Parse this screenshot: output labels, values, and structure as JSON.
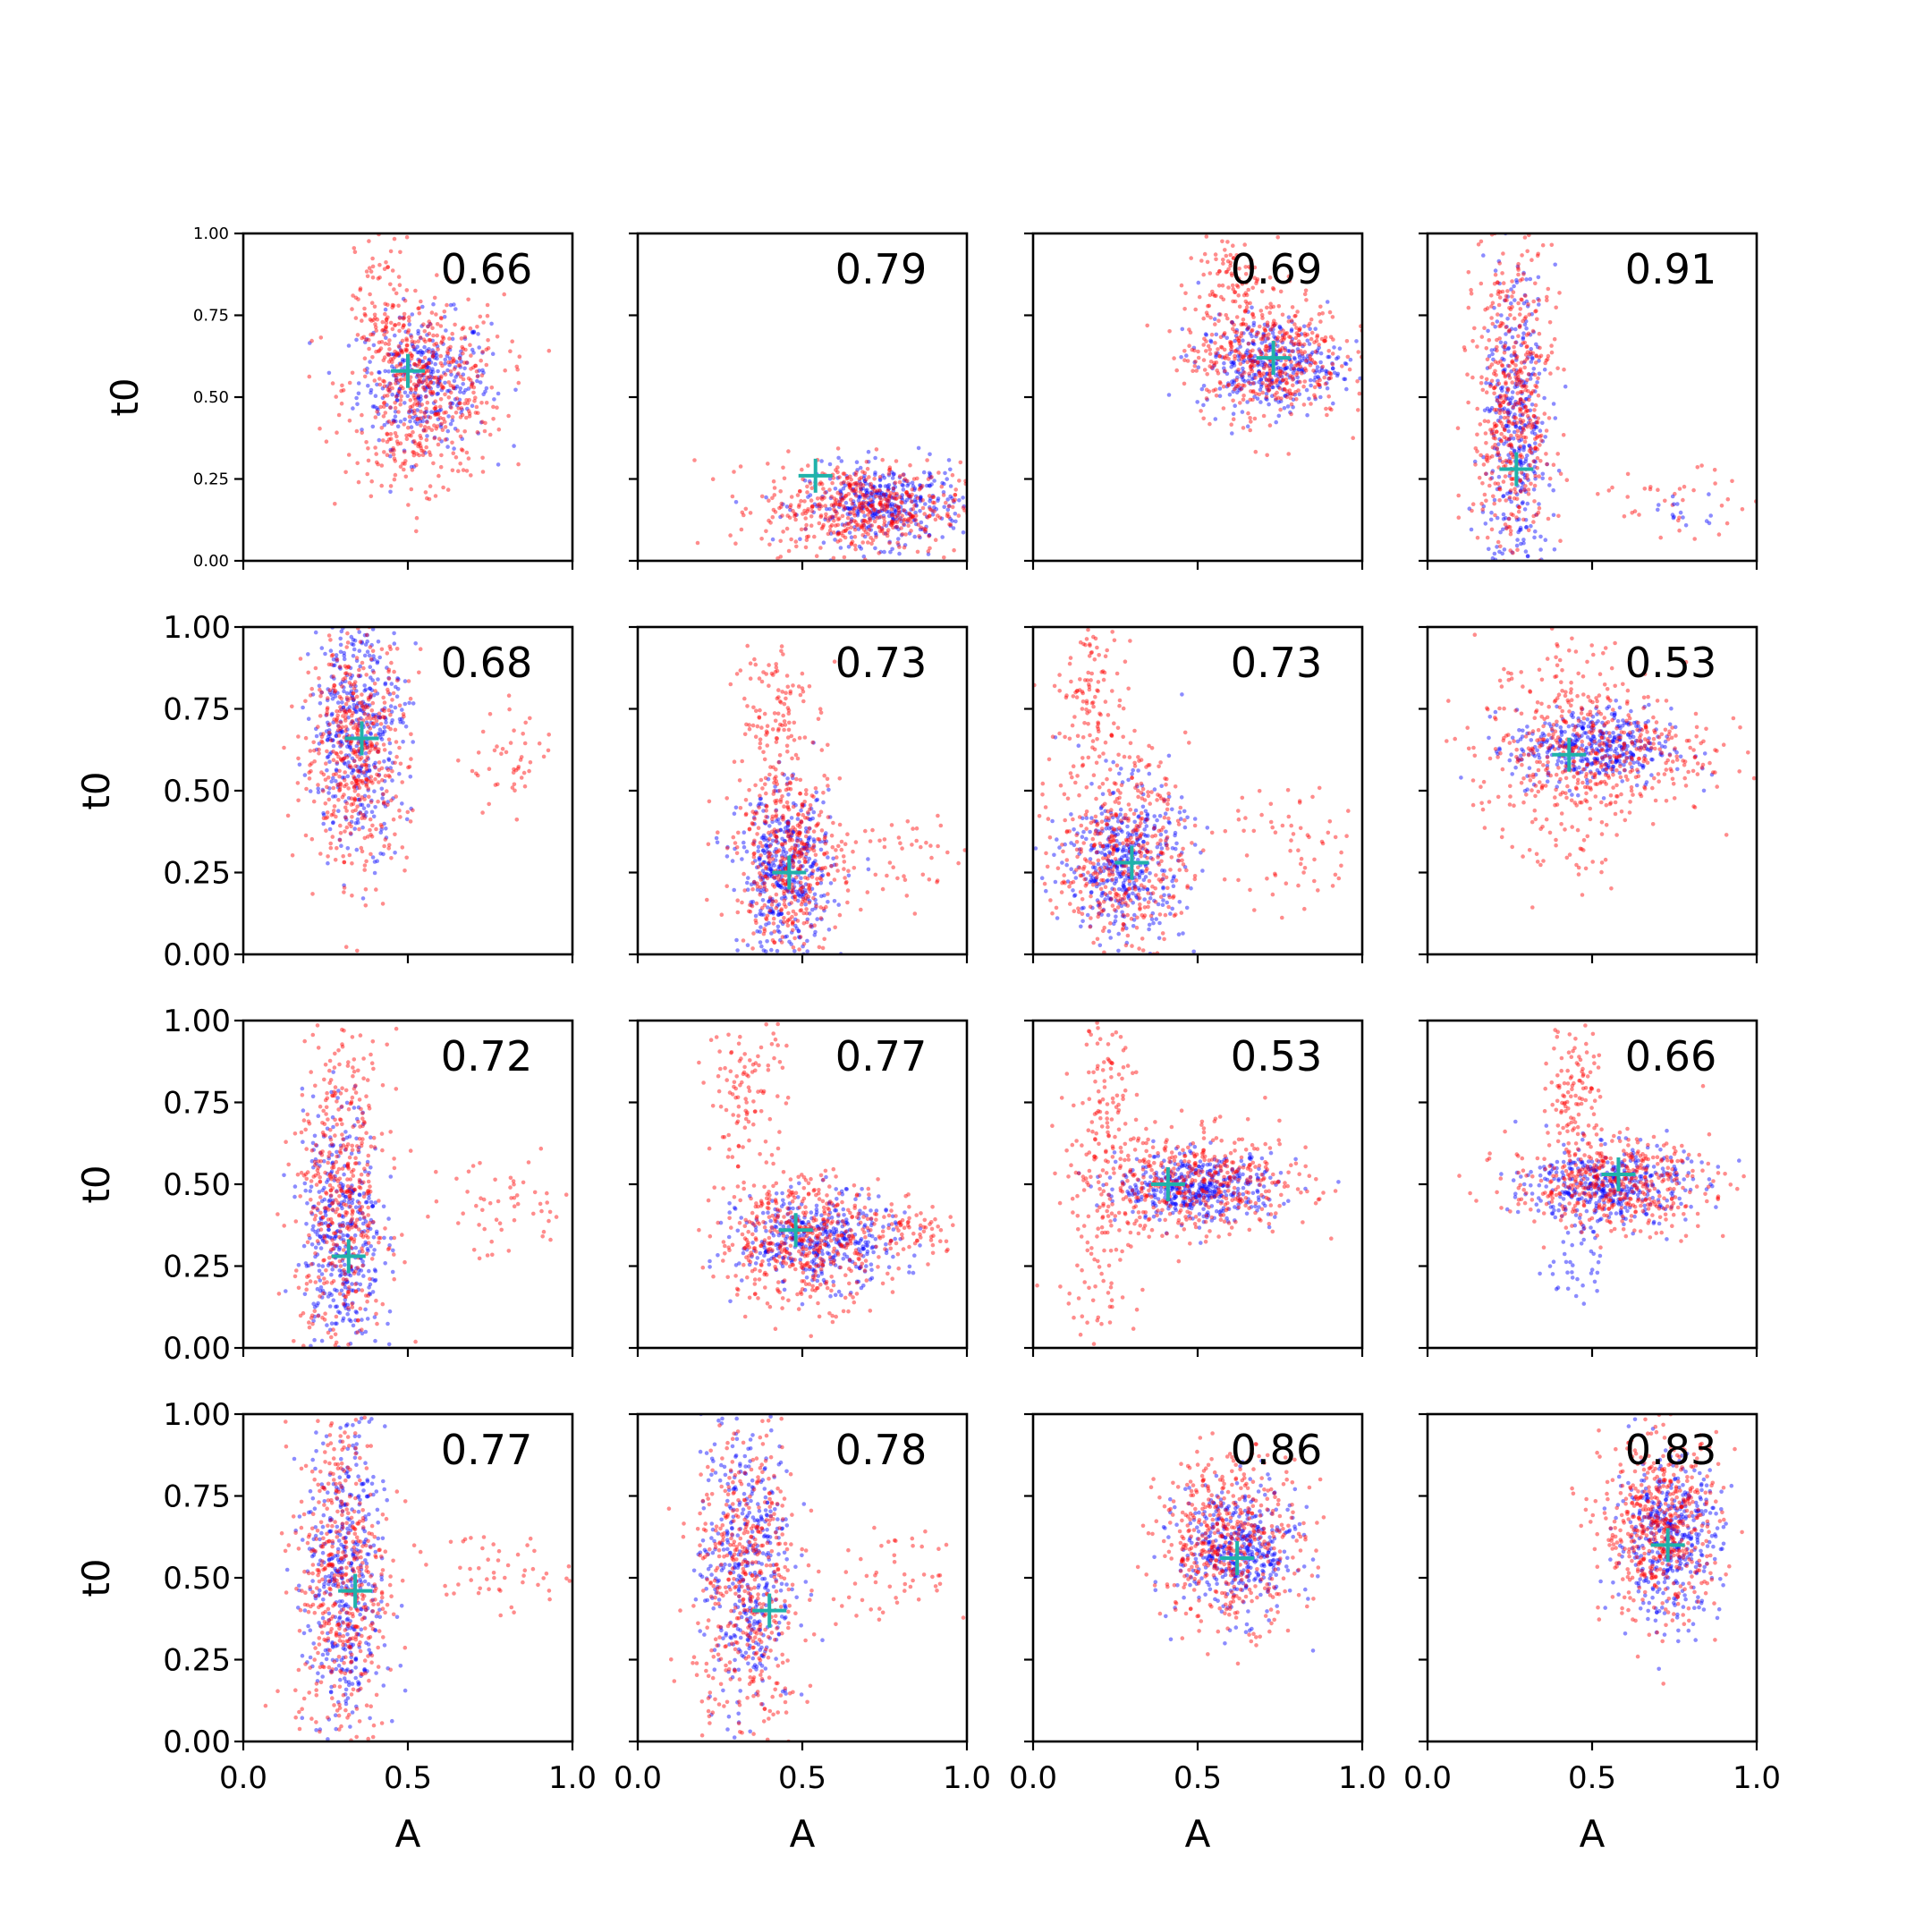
{
  "chart_data": {
    "type": "scatter",
    "layout": "4x4 grid of panels",
    "xlabel": "A",
    "ylabel": "t0",
    "xlim": [
      0,
      1
    ],
    "ylim": [
      0,
      1
    ],
    "x_ticks": [
      "0.0",
      "0.5",
      "1.0"
    ],
    "y_ticks": [
      "0.00",
      "0.25",
      "0.50",
      "0.75",
      "1.00"
    ],
    "series_colors": {
      "first": "#0000ff",
      "second": "#ff0000",
      "marker": "#20b2aa"
    },
    "panels": [
      {
        "score": "0.66",
        "marker": [
          0.5,
          0.58
        ],
        "clusters": [
          {
            "cx": 0.55,
            "cy": 0.55,
            "sx": 0.1,
            "sy": 0.1,
            "n": 320,
            "c": "blue"
          },
          {
            "cx": 0.55,
            "cy": 0.53,
            "sx": 0.12,
            "sy": 0.14,
            "n": 480,
            "c": "red"
          },
          {
            "cx": 0.42,
            "cy": 0.75,
            "sx": 0.04,
            "sy": 0.14,
            "n": 90,
            "c": "red"
          },
          {
            "cx": 0.5,
            "cy": 0.3,
            "sx": 0.05,
            "sy": 0.08,
            "n": 40,
            "c": "red"
          }
        ]
      },
      {
        "score": "0.79",
        "marker": [
          0.54,
          0.26
        ],
        "clusters": [
          {
            "cx": 0.75,
            "cy": 0.17,
            "sx": 0.12,
            "sy": 0.06,
            "n": 380,
            "c": "blue"
          },
          {
            "cx": 0.68,
            "cy": 0.16,
            "sx": 0.15,
            "sy": 0.07,
            "n": 500,
            "c": "red"
          }
        ]
      },
      {
        "score": "0.69",
        "marker": [
          0.73,
          0.62
        ],
        "clusters": [
          {
            "cx": 0.72,
            "cy": 0.6,
            "sx": 0.11,
            "sy": 0.07,
            "n": 350,
            "c": "blue"
          },
          {
            "cx": 0.7,
            "cy": 0.63,
            "sx": 0.12,
            "sy": 0.1,
            "n": 450,
            "c": "red"
          },
          {
            "cx": 0.6,
            "cy": 0.88,
            "sx": 0.05,
            "sy": 0.08,
            "n": 80,
            "c": "red"
          }
        ]
      },
      {
        "score": "0.91",
        "marker": [
          0.27,
          0.28
        ],
        "clusters": [
          {
            "cx": 0.27,
            "cy": 0.38,
            "sx": 0.05,
            "sy": 0.25,
            "n": 380,
            "c": "blue"
          },
          {
            "cx": 0.26,
            "cy": 0.45,
            "sx": 0.06,
            "sy": 0.27,
            "n": 520,
            "c": "red"
          },
          {
            "cx": 0.75,
            "cy": 0.18,
            "sx": 0.12,
            "sy": 0.05,
            "n": 35,
            "c": "red"
          },
          {
            "cx": 0.78,
            "cy": 0.15,
            "sx": 0.08,
            "sy": 0.03,
            "n": 15,
            "c": "blue"
          }
        ]
      },
      {
        "score": "0.68",
        "marker": [
          0.36,
          0.66
        ],
        "clusters": [
          {
            "cx": 0.35,
            "cy": 0.7,
            "sx": 0.07,
            "sy": 0.18,
            "n": 420,
            "c": "blue"
          },
          {
            "cx": 0.34,
            "cy": 0.62,
            "sx": 0.08,
            "sy": 0.18,
            "n": 480,
            "c": "red"
          },
          {
            "cx": 0.82,
            "cy": 0.58,
            "sx": 0.07,
            "sy": 0.08,
            "n": 45,
            "c": "red"
          }
        ]
      },
      {
        "score": "0.73",
        "marker": [
          0.46,
          0.25
        ],
        "clusters": [
          {
            "cx": 0.45,
            "cy": 0.25,
            "sx": 0.07,
            "sy": 0.12,
            "n": 420,
            "c": "blue"
          },
          {
            "cx": 0.46,
            "cy": 0.3,
            "sx": 0.08,
            "sy": 0.14,
            "n": 430,
            "c": "red"
          },
          {
            "cx": 0.4,
            "cy": 0.75,
            "sx": 0.06,
            "sy": 0.12,
            "n": 110,
            "c": "red"
          },
          {
            "cx": 0.78,
            "cy": 0.3,
            "sx": 0.1,
            "sy": 0.07,
            "n": 50,
            "c": "red"
          }
        ]
      },
      {
        "score": "0.73",
        "marker": [
          0.3,
          0.28
        ],
        "clusters": [
          {
            "cx": 0.28,
            "cy": 0.28,
            "sx": 0.09,
            "sy": 0.12,
            "n": 430,
            "c": "blue"
          },
          {
            "cx": 0.27,
            "cy": 0.32,
            "sx": 0.1,
            "sy": 0.15,
            "n": 430,
            "c": "red"
          },
          {
            "cx": 0.18,
            "cy": 0.8,
            "sx": 0.06,
            "sy": 0.12,
            "n": 110,
            "c": "red"
          },
          {
            "cx": 0.8,
            "cy": 0.32,
            "sx": 0.1,
            "sy": 0.1,
            "n": 60,
            "c": "red"
          }
        ]
      },
      {
        "score": "0.53",
        "marker": [
          0.43,
          0.61
        ],
        "clusters": [
          {
            "cx": 0.5,
            "cy": 0.63,
            "sx": 0.12,
            "sy": 0.06,
            "n": 400,
            "c": "blue"
          },
          {
            "cx": 0.5,
            "cy": 0.62,
            "sx": 0.18,
            "sy": 0.1,
            "n": 450,
            "c": "red"
          },
          {
            "cx": 0.4,
            "cy": 0.4,
            "sx": 0.1,
            "sy": 0.12,
            "n": 60,
            "c": "red"
          },
          {
            "cx": 0.42,
            "cy": 0.85,
            "sx": 0.1,
            "sy": 0.08,
            "n": 50,
            "c": "red"
          }
        ]
      },
      {
        "score": "0.72",
        "marker": [
          0.32,
          0.28
        ],
        "clusters": [
          {
            "cx": 0.3,
            "cy": 0.35,
            "sx": 0.06,
            "sy": 0.2,
            "n": 400,
            "c": "blue"
          },
          {
            "cx": 0.3,
            "cy": 0.45,
            "sx": 0.07,
            "sy": 0.25,
            "n": 480,
            "c": "red"
          },
          {
            "cx": 0.78,
            "cy": 0.42,
            "sx": 0.12,
            "sy": 0.08,
            "n": 55,
            "c": "red"
          }
        ]
      },
      {
        "score": "0.77",
        "marker": [
          0.48,
          0.36
        ],
        "clusters": [
          {
            "cx": 0.55,
            "cy": 0.33,
            "sx": 0.12,
            "sy": 0.07,
            "n": 400,
            "c": "blue"
          },
          {
            "cx": 0.5,
            "cy": 0.33,
            "sx": 0.13,
            "sy": 0.1,
            "n": 480,
            "c": "red"
          },
          {
            "cx": 0.33,
            "cy": 0.78,
            "sx": 0.06,
            "sy": 0.12,
            "n": 110,
            "c": "red"
          },
          {
            "cx": 0.85,
            "cy": 0.36,
            "sx": 0.08,
            "sy": 0.04,
            "n": 60,
            "c": "red"
          }
        ]
      },
      {
        "score": "0.53",
        "marker": [
          0.41,
          0.5
        ],
        "clusters": [
          {
            "cx": 0.5,
            "cy": 0.49,
            "sx": 0.12,
            "sy": 0.05,
            "n": 420,
            "c": "blue"
          },
          {
            "cx": 0.5,
            "cy": 0.5,
            "sx": 0.17,
            "sy": 0.08,
            "n": 450,
            "c": "red"
          },
          {
            "cx": 0.2,
            "cy": 0.4,
            "sx": 0.06,
            "sy": 0.22,
            "n": 130,
            "c": "red"
          },
          {
            "cx": 0.22,
            "cy": 0.82,
            "sx": 0.05,
            "sy": 0.1,
            "n": 60,
            "c": "red"
          }
        ]
      },
      {
        "score": "0.66",
        "marker": [
          0.58,
          0.53
        ],
        "clusters": [
          {
            "cx": 0.55,
            "cy": 0.5,
            "sx": 0.12,
            "sy": 0.06,
            "n": 400,
            "c": "blue"
          },
          {
            "cx": 0.55,
            "cy": 0.5,
            "sx": 0.15,
            "sy": 0.07,
            "n": 450,
            "c": "red"
          },
          {
            "cx": 0.45,
            "cy": 0.8,
            "sx": 0.04,
            "sy": 0.11,
            "n": 110,
            "c": "red"
          },
          {
            "cx": 0.45,
            "cy": 0.28,
            "sx": 0.04,
            "sy": 0.08,
            "n": 40,
            "c": "blue"
          }
        ]
      },
      {
        "score": "0.77",
        "marker": [
          0.34,
          0.46
        ],
        "clusters": [
          {
            "cx": 0.31,
            "cy": 0.48,
            "sx": 0.06,
            "sy": 0.24,
            "n": 420,
            "c": "blue"
          },
          {
            "cx": 0.3,
            "cy": 0.5,
            "sx": 0.07,
            "sy": 0.26,
            "n": 480,
            "c": "red"
          },
          {
            "cx": 0.75,
            "cy": 0.52,
            "sx": 0.13,
            "sy": 0.06,
            "n": 55,
            "c": "red"
          }
        ]
      },
      {
        "score": "0.78",
        "marker": [
          0.4,
          0.4
        ],
        "clusters": [
          {
            "cx": 0.33,
            "cy": 0.55,
            "sx": 0.07,
            "sy": 0.24,
            "n": 420,
            "c": "blue"
          },
          {
            "cx": 0.33,
            "cy": 0.48,
            "sx": 0.08,
            "sy": 0.26,
            "n": 480,
            "c": "red"
          },
          {
            "cx": 0.78,
            "cy": 0.5,
            "sx": 0.12,
            "sy": 0.06,
            "n": 55,
            "c": "red"
          }
        ]
      },
      {
        "score": "0.86",
        "marker": [
          0.62,
          0.56
        ],
        "clusters": [
          {
            "cx": 0.62,
            "cy": 0.58,
            "sx": 0.09,
            "sy": 0.1,
            "n": 420,
            "c": "blue"
          },
          {
            "cx": 0.6,
            "cy": 0.62,
            "sx": 0.11,
            "sy": 0.13,
            "n": 480,
            "c": "red"
          }
        ]
      },
      {
        "score": "0.83",
        "marker": [
          0.73,
          0.6
        ],
        "clusters": [
          {
            "cx": 0.73,
            "cy": 0.62,
            "sx": 0.08,
            "sy": 0.12,
            "n": 420,
            "c": "blue"
          },
          {
            "cx": 0.71,
            "cy": 0.65,
            "sx": 0.09,
            "sy": 0.14,
            "n": 520,
            "c": "red"
          }
        ]
      }
    ]
  }
}
